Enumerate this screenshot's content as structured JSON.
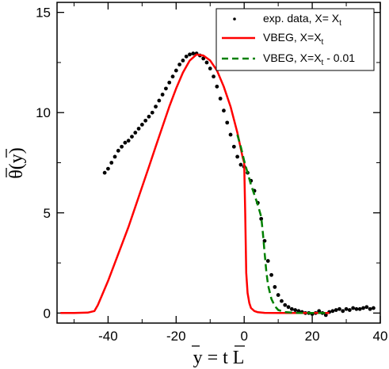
{
  "chart_data": {
    "type": "line",
    "xlabel": "y = t L",
    "ylabel": "θ(y)",
    "xlim": [
      -55,
      40
    ],
    "ylim": [
      -0.5,
      15.5
    ],
    "x_ticks": [
      -40,
      -20,
      0,
      20,
      40
    ],
    "y_ticks": [
      0,
      5,
      10,
      15
    ],
    "grid": false,
    "legend_position": "top-right",
    "legend": [
      {
        "label": "exp. data, X= X",
        "sub": "t"
      },
      {
        "label": "VBEG, X=X",
        "sub": "t"
      },
      {
        "label": "VBEG, X=X",
        "sub": "t",
        "suffix": " - 0.01"
      }
    ],
    "colors": {
      "data": "#000000",
      "vbeg": "#ff0000",
      "vbeg_shift": "#008000"
    },
    "series": [
      {
        "name": "exp. data, X= Xt",
        "style": "scatter",
        "x": [
          -41,
          -40,
          -39,
          -38,
          -37,
          -36,
          -35,
          -34,
          -33,
          -32,
          -31,
          -30,
          -29,
          -28,
          -27,
          -26,
          -25,
          -24,
          -23,
          -22,
          -21,
          -20,
          -19,
          -18,
          -17,
          -16,
          -15,
          -14,
          -13,
          -12,
          -11,
          -10,
          -9,
          -8,
          -7,
          -6,
          -5,
          -4,
          -3,
          -2,
          -1,
          0,
          1,
          2,
          3,
          4,
          5,
          6,
          7,
          8,
          9,
          10,
          11,
          12,
          13,
          14,
          15,
          16,
          17,
          18,
          19,
          20,
          21,
          22,
          23,
          24,
          25,
          26,
          27,
          28,
          29,
          30,
          31,
          32,
          33,
          34,
          35,
          36,
          37,
          38
        ],
        "y": [
          7.0,
          7.2,
          7.5,
          7.8,
          8.1,
          8.3,
          8.5,
          8.6,
          8.8,
          9.0,
          9.2,
          9.4,
          9.6,
          9.8,
          10.0,
          10.3,
          10.6,
          10.9,
          11.2,
          11.5,
          11.8,
          12.1,
          12.4,
          12.6,
          12.8,
          12.9,
          12.95,
          12.95,
          12.85,
          12.7,
          12.5,
          12.2,
          11.8,
          11.3,
          10.7,
          10.1,
          9.5,
          8.9,
          8.3,
          7.8,
          7.4,
          7.3,
          7.0,
          6.6,
          6.1,
          5.5,
          4.7,
          3.6,
          2.6,
          1.9,
          1.3,
          0.9,
          0.6,
          0.4,
          0.3,
          0.2,
          0.15,
          0.1,
          0.05,
          0.0,
          0.0,
          -0.05,
          0.0,
          0.1,
          0.0,
          -0.1,
          0.05,
          0.1,
          0.15,
          0.2,
          0.1,
          0.2,
          0.15,
          0.25,
          0.2,
          0.2,
          0.25,
          0.3,
          0.2,
          0.25
        ]
      },
      {
        "name": "VBEG, X=Xt",
        "style": "line",
        "x": [
          -54,
          -50,
          -46,
          -44,
          -43,
          -42,
          -40,
          -38,
          -36,
          -34,
          -32,
          -30,
          -28,
          -26,
          -24,
          -22,
          -20,
          -18,
          -16,
          -14,
          -12,
          -10,
          -8,
          -6,
          -4,
          -2,
          -0.5,
          0,
          0.3,
          0.6,
          1,
          1.5,
          2,
          3,
          4,
          6,
          10,
          15,
          20,
          25
        ],
        "y": [
          0.0,
          0.0,
          0.02,
          0.1,
          0.4,
          0.8,
          1.6,
          2.5,
          3.4,
          4.3,
          5.3,
          6.3,
          7.3,
          8.3,
          9.3,
          10.3,
          11.2,
          12.0,
          12.6,
          12.9,
          12.85,
          12.6,
          12.1,
          11.3,
          10.3,
          9.0,
          7.8,
          7.5,
          5.0,
          2.0,
          1.0,
          0.5,
          0.25,
          0.1,
          0.04,
          0.01,
          0.0,
          0.0,
          0.0,
          0.0
        ]
      },
      {
        "name": "VBEG, X=Xt - 0.01",
        "style": "dashed",
        "x": [
          -2,
          -1,
          0,
          1,
          2,
          3,
          4,
          5,
          5.5,
          6,
          6.5,
          7,
          8,
          9,
          10,
          12,
          15,
          20,
          25
        ],
        "y": [
          8.9,
          8.3,
          7.6,
          7.0,
          6.4,
          5.9,
          5.4,
          4.8,
          4.0,
          3.0,
          2.1,
          1.4,
          0.7,
          0.35,
          0.15,
          0.05,
          0.01,
          0.0,
          0.0
        ]
      }
    ]
  }
}
